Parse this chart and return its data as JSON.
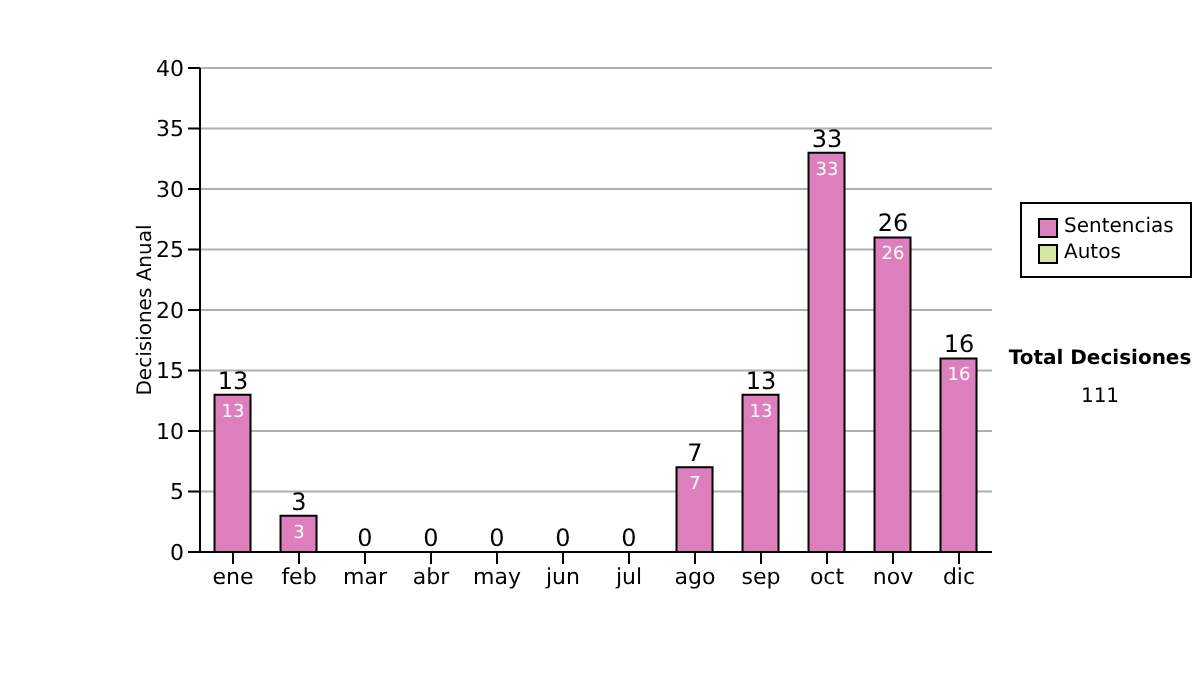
{
  "chart_data": {
    "type": "bar",
    "stacked": true,
    "ylabel": "Decisiones Anual",
    "categories": [
      "ene",
      "feb",
      "mar",
      "abr",
      "may",
      "jun",
      "jul",
      "ago",
      "sep",
      "oct",
      "nov",
      "dic"
    ],
    "series": [
      {
        "name": "Sentencias",
        "color": "#dd7fbd",
        "values": [
          13,
          3,
          0,
          0,
          0,
          0,
          0,
          7,
          13,
          33,
          26,
          16
        ],
        "value_labels": [
          "13",
          "3",
          null,
          null,
          null,
          null,
          null,
          "7",
          "13",
          "33",
          "26",
          "16"
        ]
      },
      {
        "name": "Autos",
        "color": "#d6e6a0",
        "values": [
          0,
          0,
          0,
          0,
          0,
          0,
          0,
          0,
          0,
          0,
          0,
          0
        ]
      }
    ],
    "totals": [
      "13",
      "3",
      "0",
      "0",
      "0",
      "0",
      "0",
      "7",
      "13",
      "33",
      "26",
      "16"
    ],
    "ylim": [
      0,
      40
    ],
    "yticks": [
      0,
      5,
      10,
      15,
      20,
      25,
      30,
      35,
      40
    ],
    "grid": "y",
    "legend": "right",
    "annotations": [
      "Total Decisiones",
      "111"
    ]
  }
}
